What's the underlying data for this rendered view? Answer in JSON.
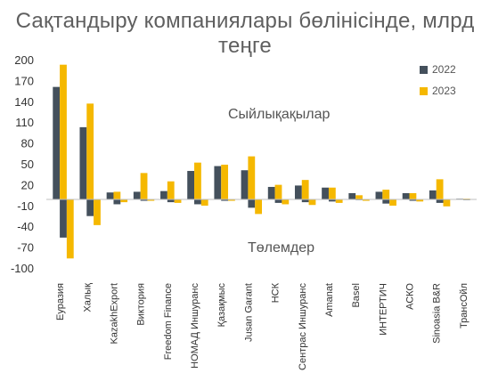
{
  "chart_data": {
    "type": "bar",
    "title": "Сақтандыру компаниялары бөлінісінде, млрд теңге",
    "categories": [
      "Еуразия",
      "Халық",
      "KazakhExport",
      "Виктория",
      "Freedom Finance",
      "НОМАД Иншуранс",
      "Қазақмыс",
      "Jusan Garant",
      "НСК",
      "Сентрас Иншуранс",
      "Amanat",
      "Basel",
      "ИНТЕРТИЧ",
      "АСКО",
      "Sinoasia B&R",
      "ТрансОйл"
    ],
    "yticks": [
      200,
      170,
      140,
      110,
      80,
      50,
      20,
      -10,
      -40,
      -70,
      -100
    ],
    "ylim": [
      -100,
      200
    ],
    "legend_position": "top-right",
    "annotations": [
      "Сыйлықақылар",
      "Төлемдер"
    ],
    "colors": {
      "2022": "#44505c",
      "2023": "#f5b800"
    },
    "series": [
      {
        "name": "2022",
        "premiums": [
          162,
          104,
          10,
          11,
          12,
          41,
          48,
          42,
          18,
          20,
          17,
          9,
          11,
          9,
          13,
          1
        ],
        "payouts": [
          -55,
          -24,
          -7,
          -2,
          -4,
          -7,
          -2,
          -12,
          -5,
          -4,
          -3,
          -1,
          -6,
          -2,
          -5,
          -1
        ]
      },
      {
        "name": "2023",
        "premiums": [
          194,
          138,
          11,
          38,
          26,
          53,
          50,
          62,
          21,
          28,
          17,
          6,
          14,
          9,
          29,
          1
        ],
        "payouts": [
          -85,
          -37,
          -4,
          -2,
          -5,
          -9,
          -2,
          -21,
          -7,
          -8,
          -5,
          -2,
          -9,
          -3,
          -10,
          0
        ]
      }
    ]
  }
}
